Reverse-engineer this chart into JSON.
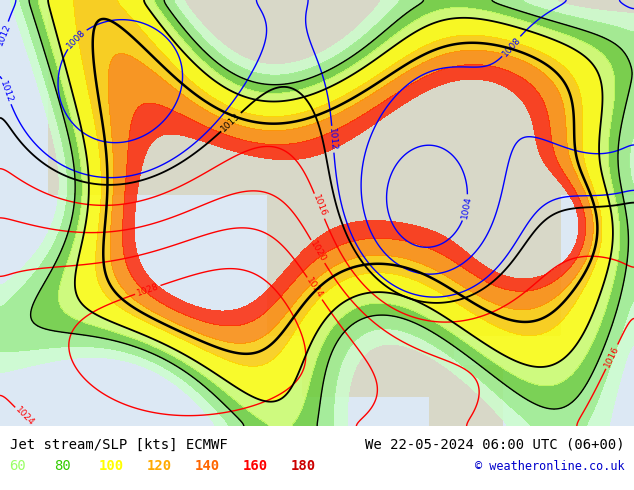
{
  "title_left": "Jet stream/SLP [kts] ECMWF",
  "title_right": "We 22-05-2024 06:00 UTC (06+00)",
  "copyright": "© weatheronline.co.uk",
  "legend_values": [
    "60",
    "80",
    "100",
    "120",
    "140",
    "160",
    "180"
  ],
  "legend_colors": [
    "#99ff66",
    "#33cc00",
    "#ffff00",
    "#ffaa00",
    "#ff6600",
    "#ff0000",
    "#cc0000"
  ],
  "bg_color": "#f0f0f0",
  "map_bg": "#e8e8e8",
  "land_color": "#c8c8b0",
  "ocean_color": "#dce8f0",
  "jet_colors": [
    "#ccffcc",
    "#99ee88",
    "#66cc33",
    "#ccff66",
    "#ffff00",
    "#ffcc00",
    "#ff8800",
    "#ff2200"
  ],
  "jet_levels": [
    60,
    70,
    80,
    90,
    100,
    120,
    140,
    160,
    180
  ],
  "text_color": "#000000",
  "title_fontsize": 10,
  "legend_fontsize": 10,
  "copyright_color": "#0000cc",
  "slp_red_color": "#ff0000",
  "slp_blue_color": "#0000ff",
  "slp_black_color": "#000000",
  "fig_width": 6.34,
  "fig_height": 4.9,
  "dpi": 100
}
